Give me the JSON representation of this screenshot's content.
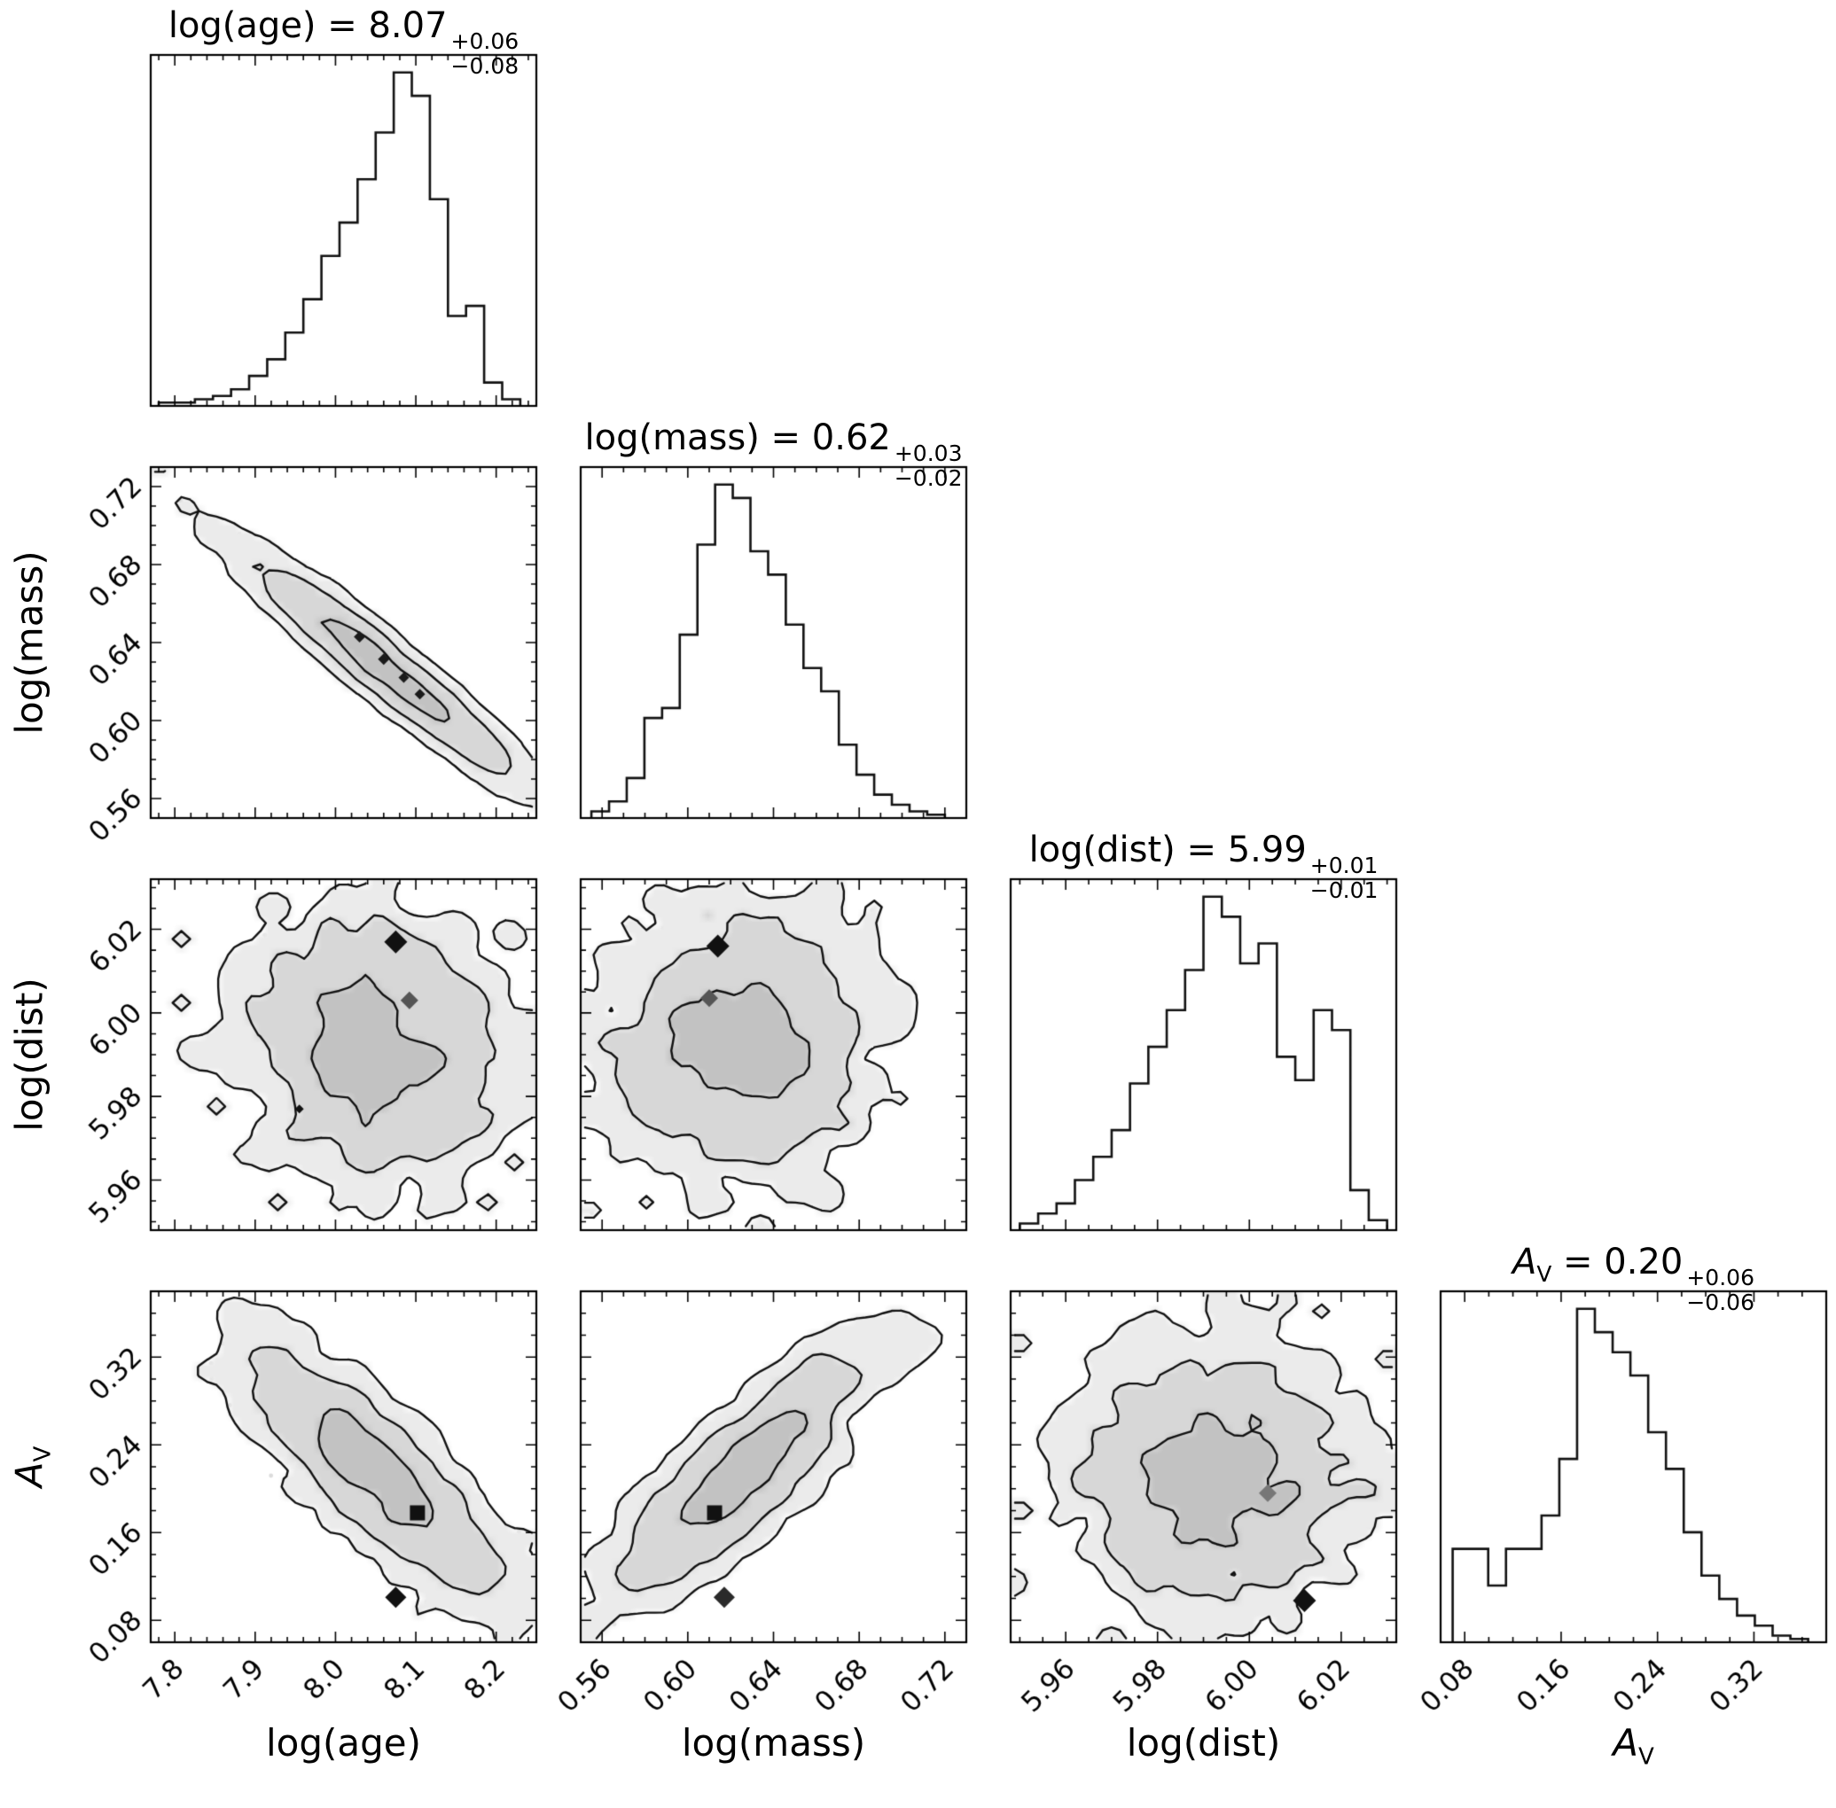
{
  "figure": {
    "background": "#ffffff",
    "line_color": "#111111",
    "scatter_color": "rgba(130,130,130,0.28)",
    "fill_colors": [
      "#ebebeb",
      "#d7d7d7",
      "#c2c2c2"
    ]
  },
  "chart_data": {
    "type": "corner-plot",
    "contour_mass_fractions": [
      0.393,
      0.865,
      0.989
    ],
    "parameters": [
      {
        "name": "log_age",
        "range": [
          7.77,
          8.25
        ],
        "ticks": [
          7.8,
          7.9,
          8.0,
          8.1,
          8.2
        ],
        "tick_labels": [
          "7.8",
          "7.9",
          "8.0",
          "8.1",
          "8.2"
        ],
        "minor_div": 5,
        "median": 8.07,
        "err_plus": 0.06,
        "err_minus": 0.08,
        "title": {
          "it": "",
          "itsub": "",
          "text": "log(age) = 8.07",
          "plus": "+0.06",
          "minus": "−0.08"
        },
        "axis": {
          "pre": "log(age)",
          "it": "",
          "sub": ""
        },
        "hist": {
          "range": [
            7.78,
            8.23
          ],
          "heights": [
            0.01,
            0.01,
            0.02,
            0.03,
            0.05,
            0.09,
            0.14,
            0.22,
            0.32,
            0.45,
            0.55,
            0.68,
            0.82,
            1.0,
            0.93,
            0.62,
            0.27,
            0.3,
            0.07,
            0.02
          ]
        }
      },
      {
        "name": "log_mass",
        "range": [
          0.55,
          0.73
        ],
        "ticks": [
          0.56,
          0.6,
          0.64,
          0.68,
          0.72
        ],
        "tick_labels": [
          "0.56",
          "0.60",
          "0.64",
          "0.68",
          "0.72"
        ],
        "minor_div": 4,
        "median": 0.62,
        "err_plus": 0.03,
        "err_minus": 0.02,
        "title": {
          "it": "",
          "itsub": "",
          "text": "log(mass) = 0.62",
          "plus": "+0.03",
          "minus": "−0.02"
        },
        "axis": {
          "pre": "log(mass)",
          "it": "",
          "sub": ""
        },
        "hist": {
          "range": [
            0.555,
            0.72
          ],
          "heights": [
            0.02,
            0.05,
            0.12,
            0.3,
            0.33,
            0.55,
            0.82,
            1.0,
            0.96,
            0.8,
            0.73,
            0.58,
            0.45,
            0.38,
            0.22,
            0.13,
            0.07,
            0.04,
            0.02,
            0.01
          ]
        }
      },
      {
        "name": "log_dist",
        "range": [
          5.948,
          6.032
        ],
        "ticks": [
          5.96,
          5.98,
          6.0,
          6.02
        ],
        "tick_labels": [
          "5.96",
          "5.98",
          "6.00",
          "6.02"
        ],
        "minor_div": 4,
        "median": 5.99,
        "err_plus": 0.01,
        "err_minus": 0.01,
        "title": {
          "it": "",
          "itsub": "",
          "text": "log(dist) = 5.99",
          "plus": "+0.01",
          "minus": "−0.01"
        },
        "axis": {
          "pre": "log(dist)",
          "it": "",
          "sub": ""
        },
        "hist": {
          "range": [
            5.95,
            6.03
          ],
          "heights": [
            0.02,
            0.05,
            0.08,
            0.15,
            0.22,
            0.3,
            0.44,
            0.55,
            0.66,
            0.78,
            1.0,
            0.94,
            0.8,
            0.86,
            0.52,
            0.45,
            0.66,
            0.6,
            0.12,
            0.03
          ]
        }
      },
      {
        "name": "A_V",
        "range": [
          0.06,
          0.38
        ],
        "ticks": [
          0.08,
          0.16,
          0.24,
          0.32
        ],
        "tick_labels": [
          "0.08",
          "0.16",
          "0.24",
          "0.32"
        ],
        "minor_div": 4,
        "median": 0.2,
        "err_plus": 0.06,
        "err_minus": 0.06,
        "title": {
          "it": "A",
          "itsub": "V",
          "text": " = 0.20",
          "plus": "+0.06",
          "minus": "−0.06"
        },
        "axis": {
          "pre": "",
          "it": "A",
          "sub": "V"
        },
        "hist": {
          "range": [
            0.07,
            0.365
          ],
          "heights": [
            0.28,
            0.28,
            0.17,
            0.28,
            0.28,
            0.38,
            0.55,
            1.0,
            0.93,
            0.87,
            0.8,
            0.63,
            0.52,
            0.33,
            0.2,
            0.13,
            0.08,
            0.05,
            0.02,
            0.01
          ]
        }
      }
    ],
    "panels_2d": [
      {
        "xi": 0,
        "yi": 1,
        "mean": [
          8.06,
          0.627
        ],
        "sigma": [
          0.082,
          0.0275
        ],
        "rho": -0.986,
        "seed": 11,
        "markers": [
          {
            "x": 8.03,
            "y": 0.643,
            "shape": "diamond",
            "size": 13,
            "color": "#1a1a1a"
          },
          {
            "x": 8.06,
            "y": 0.6315,
            "shape": "diamond",
            "size": 13,
            "color": "#1a1a1a"
          },
          {
            "x": 8.085,
            "y": 0.622,
            "shape": "diamond",
            "size": 12,
            "color": "#1a1a1a"
          },
          {
            "x": 8.105,
            "y": 0.6135,
            "shape": "diamond",
            "size": 12,
            "color": "#1a1a1a"
          }
        ]
      },
      {
        "xi": 0,
        "yi": 2,
        "mean": [
          8.05,
          5.992
        ],
        "sigma": [
          0.075,
          0.0145
        ],
        "rho": -0.12,
        "seed": 12,
        "markers": [
          {
            "x": 8.075,
            "y": 6.017,
            "shape": "diamond",
            "size": 26,
            "color": "#111111"
          },
          {
            "x": 8.092,
            "y": 6.003,
            "shape": "diamond",
            "size": 20,
            "color": "#555555"
          },
          {
            "x": 7.955,
            "y": 5.977,
            "shape": "diamond",
            "size": 10,
            "color": "#111111"
          }
        ]
      },
      {
        "xi": 1,
        "yi": 2,
        "mean": [
          0.625,
          5.992
        ],
        "sigma": [
          0.028,
          0.0145
        ],
        "rho": 0.1,
        "seed": 13,
        "markers": [
          {
            "x": 0.614,
            "y": 6.016,
            "shape": "diamond",
            "size": 26,
            "color": "#111111"
          },
          {
            "x": 0.61,
            "y": 6.0035,
            "shape": "diamond",
            "size": 20,
            "color": "#555555"
          }
        ]
      },
      {
        "xi": 0,
        "yi": 3,
        "mean": [
          8.05,
          0.215
        ],
        "sigma": [
          0.075,
          0.053
        ],
        "rho": -0.86,
        "seed": 14,
        "markers": [
          {
            "x": 8.102,
            "y": 0.178,
            "shape": "square",
            "size": 17,
            "color": "#111111"
          },
          {
            "x": 8.075,
            "y": 0.101,
            "shape": "diamond",
            "size": 24,
            "color": "#111111"
          }
        ]
      },
      {
        "xi": 1,
        "yi": 3,
        "mean": [
          0.625,
          0.213
        ],
        "sigma": [
          0.028,
          0.053
        ],
        "rho": 0.87,
        "seed": 15,
        "markers": [
          {
            "x": 0.6125,
            "y": 0.178,
            "shape": "square",
            "size": 17,
            "color": "#111111"
          },
          {
            "x": 0.617,
            "y": 0.101,
            "shape": "diamond",
            "size": 24,
            "color": "#2a2a2a"
          }
        ]
      },
      {
        "xi": 2,
        "yi": 3,
        "mean": [
          5.992,
          0.211
        ],
        "sigma": [
          0.0145,
          0.053
        ],
        "rho": 0.05,
        "seed": 16,
        "markers": [
          {
            "x": 6.004,
            "y": 0.196,
            "shape": "diamond",
            "size": 20,
            "color": "#777777"
          },
          {
            "x": 6.012,
            "y": 0.098,
            "shape": "diamond",
            "size": 26,
            "color": "#111111"
          }
        ]
      }
    ]
  }
}
